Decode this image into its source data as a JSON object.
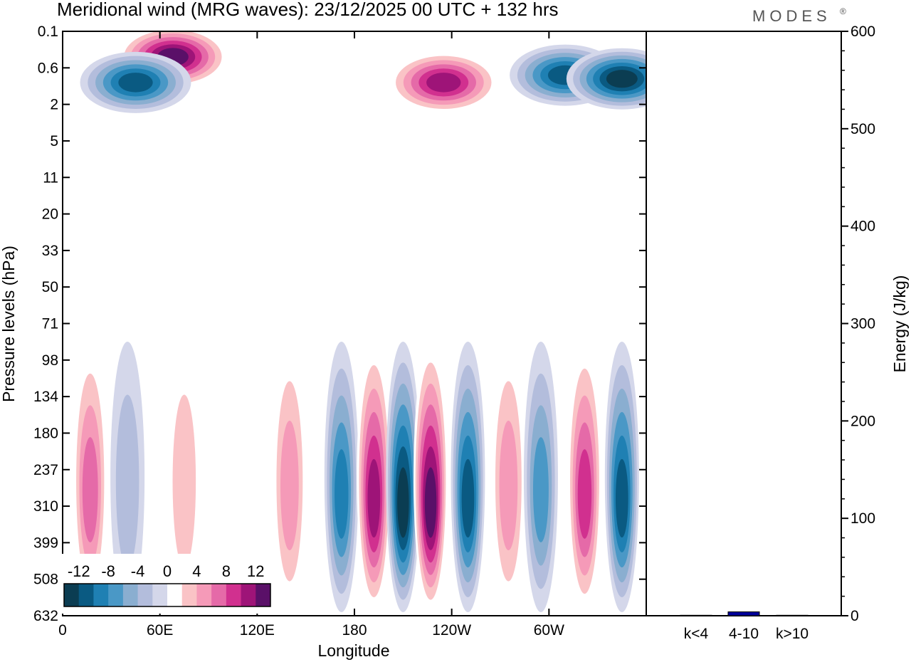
{
  "title": "Meridional wind (MRG waves):  23/12/2025  00 UTC  + 132 hrs",
  "brand": "MODES",
  "brand_mark": "®",
  "chart_data": [
    {
      "type": "heatmap",
      "xlabel": "Longitude",
      "ylabel": "Pressure levels (hPa)",
      "x_ticks": [
        "0",
        "60E",
        "120E",
        "180",
        "120W",
        "60W"
      ],
      "x_tick_degrees": [
        0,
        60,
        120,
        180,
        240,
        300
      ],
      "xlim": [
        0,
        360
      ],
      "y_ticks": [
        "0.1",
        "0.6",
        "2",
        "5",
        "11",
        "20",
        "33",
        "50",
        "71",
        "98",
        "134",
        "180",
        "237",
        "310",
        "399",
        "508",
        "632"
      ],
      "colorbar": {
        "labels": [
          "-12",
          "-8",
          "-4",
          "0",
          "4",
          "8",
          "12"
        ],
        "levels": [
          -14,
          -12,
          -10,
          -8,
          -6,
          -4,
          -2,
          2,
          4,
          6,
          8,
          10,
          12,
          14
        ],
        "colors": [
          "#0b3d52",
          "#0a5a82",
          "#1f80b3",
          "#4a98c6",
          "#8aaed0",
          "#b3bddc",
          "#d4d7ea",
          "#ffffff",
          "#fac3c6",
          "#f59ab8",
          "#e56aa8",
          "#d1308f",
          "#9e1478",
          "#5a1068"
        ]
      },
      "upper_blobs": [
        {
          "name": "east-asia-pos-max",
          "lon": 68,
          "level": 0.7,
          "value": 14
        },
        {
          "name": "cent-pac-pos-max",
          "lon": 235,
          "level": 1.4,
          "value": 13
        },
        {
          "name": "indian-neg-max",
          "lon": 45,
          "level": 1.4,
          "value": -12
        },
        {
          "name": "dateline-neg-max",
          "lon": 310,
          "level": 1.2,
          "value": -13
        },
        {
          "name": "east-neg-max",
          "lon": 345,
          "level": 1.3,
          "value": -14
        }
      ],
      "lower_wave": [
        {
          "lon": 17,
          "value": 9
        },
        {
          "lon": 40,
          "value": -4
        },
        {
          "lon": 75,
          "value": 4
        },
        {
          "lon": 140,
          "value": 6
        },
        {
          "lon": 172,
          "value": -10
        },
        {
          "lon": 192,
          "value": 12
        },
        {
          "lon": 210,
          "value": -14
        },
        {
          "lon": 227,
          "value": 14
        },
        {
          "lon": 250,
          "value": -12
        },
        {
          "lon": 275,
          "value": 6
        },
        {
          "lon": 295,
          "value": -9
        },
        {
          "lon": 322,
          "value": 11
        },
        {
          "lon": 345,
          "value": -13
        }
      ]
    },
    {
      "type": "bar",
      "ylabel": "Energy (J/kg)",
      "categories": [
        "k<4",
        "4-10",
        "k>10"
      ],
      "values": [
        0.5,
        4,
        0.5
      ],
      "colors": [
        "#000099",
        "#000099",
        "#000099"
      ],
      "ylim": [
        0,
        600
      ],
      "y_ticks": [
        "0",
        "100",
        "200",
        "300",
        "400",
        "500",
        "600"
      ],
      "y_tick_values": [
        0,
        100,
        200,
        300,
        400,
        500,
        600
      ]
    }
  ]
}
